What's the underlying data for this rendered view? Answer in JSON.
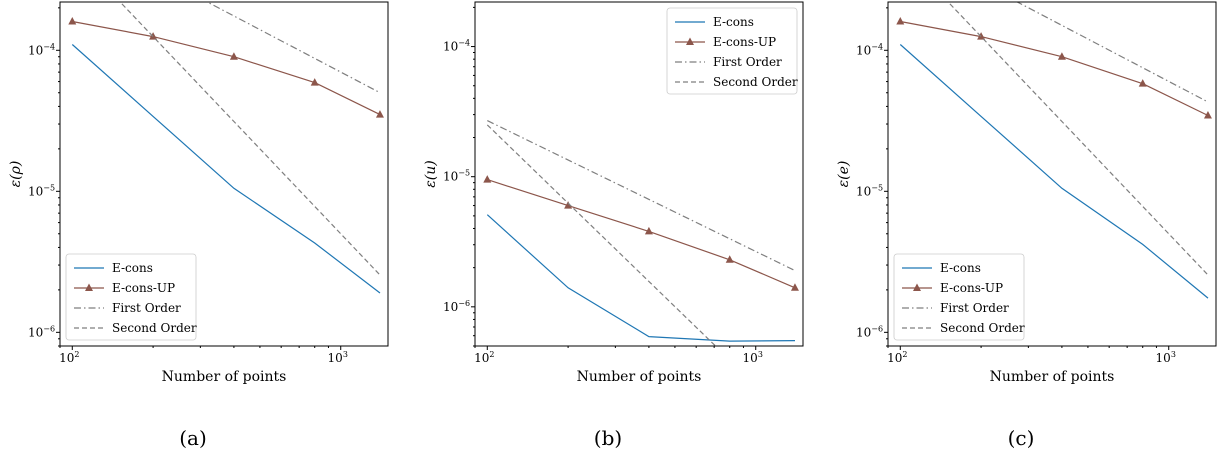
{
  "chart_data": [
    {
      "type": "line",
      "caption": "(a)",
      "xlabel": "Number of points",
      "ylabel": "ε(ρ)",
      "xscale": "log",
      "yscale": "log",
      "xlim": [
        90,
        1500
      ],
      "ylim": [
        8e-07,
        0.00022
      ],
      "x_ticks": [
        {
          "value": 100,
          "base": "10",
          "exp": "2"
        },
        {
          "value": 1000,
          "base": "10",
          "exp": "3"
        }
      ],
      "y_ticks": [
        {
          "value": 1e-06,
          "base": "10",
          "exp": "−6"
        },
        {
          "value": 1e-05,
          "base": "10",
          "exp": "−5"
        },
        {
          "value": 0.0001,
          "base": "10",
          "exp": "−4"
        }
      ],
      "legend_position": "lower-left",
      "grid": false,
      "series": [
        {
          "name": "E-cons",
          "color": "#1f77b4",
          "style": "solid",
          "marker": "none",
          "x": [
            100,
            200,
            400,
            800,
            1400
          ],
          "y": [
            0.00011,
            3.4e-05,
            1.05e-05,
            4.3e-06,
            1.9e-06
          ]
        },
        {
          "name": "E-cons-UP",
          "color": "#8c564b",
          "style": "solid",
          "marker": "triangle",
          "x": [
            100,
            200,
            400,
            800,
            1400
          ],
          "y": [
            0.00016,
            0.000125,
            9e-05,
            5.9e-05,
            3.5e-05
          ]
        },
        {
          "name": "First Order",
          "color": "#7f7f7f",
          "style": "dashdot",
          "marker": "none",
          "x": [
            100,
            1400
          ],
          "y": [
            0.0007,
            5e-05
          ]
        },
        {
          "name": "Second Order",
          "color": "#7f7f7f",
          "style": "dashed",
          "marker": "none",
          "x": [
            100,
            1400
          ],
          "y": [
            0.0005,
            2.55e-06
          ]
        }
      ]
    },
    {
      "type": "line",
      "caption": "(b)",
      "xlabel": "Number of points",
      "ylabel": "ε(u)",
      "xscale": "log",
      "yscale": "log",
      "xlim": [
        90,
        1500
      ],
      "ylim": [
        5e-07,
        0.00022
      ],
      "x_ticks": [
        {
          "value": 100,
          "base": "10",
          "exp": "2"
        },
        {
          "value": 1000,
          "base": "10",
          "exp": "3"
        }
      ],
      "y_ticks": [
        {
          "value": 1e-06,
          "base": "10",
          "exp": "−6"
        },
        {
          "value": 1e-05,
          "base": "10",
          "exp": "−5"
        },
        {
          "value": 0.0001,
          "base": "10",
          "exp": "−4"
        }
      ],
      "legend_position": "upper-right",
      "grid": false,
      "series": [
        {
          "name": "E-cons",
          "color": "#1f77b4",
          "style": "solid",
          "marker": "none",
          "x": [
            100,
            200,
            400,
            800,
            1400
          ],
          "y": [
            5.1e-06,
            1.4e-06,
            5.9e-07,
            5.45e-07,
            5.5e-07
          ]
        },
        {
          "name": "E-cons-UP",
          "color": "#8c564b",
          "style": "solid",
          "marker": "triangle",
          "x": [
            100,
            200,
            400,
            800,
            1400
          ],
          "y": [
            9.5e-06,
            6e-06,
            3.8e-06,
            2.3e-06,
            1.4e-06
          ]
        },
        {
          "name": "First Order",
          "color": "#7f7f7f",
          "style": "dashdot",
          "marker": "none",
          "x": [
            100,
            1400
          ],
          "y": [
            2.7e-05,
            1.9e-06
          ]
        },
        {
          "name": "Second Order",
          "color": "#7f7f7f",
          "style": "dashed",
          "marker": "none",
          "x": [
            100,
            1400
          ],
          "y": [
            2.5e-05,
            1.28e-07
          ]
        }
      ]
    },
    {
      "type": "line",
      "caption": "(c)",
      "xlabel": "Number of points",
      "ylabel": "ε(e)",
      "xscale": "log",
      "yscale": "log",
      "xlim": [
        90,
        1500
      ],
      "ylim": [
        8e-07,
        0.00022
      ],
      "x_ticks": [
        {
          "value": 100,
          "base": "10",
          "exp": "2"
        },
        {
          "value": 1000,
          "base": "10",
          "exp": "3"
        }
      ],
      "y_ticks": [
        {
          "value": 1e-06,
          "base": "10",
          "exp": "−6"
        },
        {
          "value": 1e-05,
          "base": "10",
          "exp": "−5"
        },
        {
          "value": 0.0001,
          "base": "10",
          "exp": "−4"
        }
      ],
      "legend_position": "lower-left",
      "grid": false,
      "series": [
        {
          "name": "E-cons",
          "color": "#1f77b4",
          "style": "solid",
          "marker": "none",
          "x": [
            100,
            200,
            400,
            800,
            1400
          ],
          "y": [
            0.00011,
            3.4e-05,
            1.05e-05,
            4.2e-06,
            1.75e-06
          ]
        },
        {
          "name": "E-cons-UP",
          "color": "#8c564b",
          "style": "solid",
          "marker": "triangle",
          "x": [
            100,
            200,
            400,
            800,
            1400
          ],
          "y": [
            0.00016,
            0.000125,
            9e-05,
            5.8e-05,
            3.45e-05
          ]
        },
        {
          "name": "First Order",
          "color": "#7f7f7f",
          "style": "dashdot",
          "marker": "none",
          "x": [
            100,
            1400
          ],
          "y": [
            0.0006,
            4.3e-05
          ]
        },
        {
          "name": "Second Order",
          "color": "#7f7f7f",
          "style": "dashed",
          "marker": "none",
          "x": [
            100,
            1400
          ],
          "y": [
            0.0005,
            2.55e-06
          ]
        }
      ]
    }
  ]
}
